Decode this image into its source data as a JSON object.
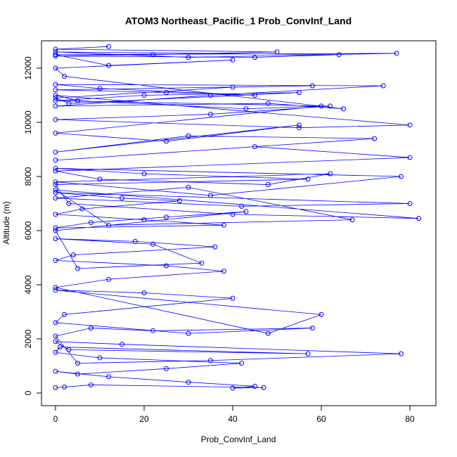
{
  "chart_data": {
    "type": "line",
    "title": "ATOM3 Northeast_Pacific_1 Prob_ConvInf_Land",
    "x_label": "Prob_ConvInf_Land",
    "y_label": "Altitude (m)",
    "color": "#0000ff",
    "xlim": [
      -3.17,
      85.87
    ],
    "ylim": [
      -468,
      13013
    ],
    "xticks": [
      0,
      20,
      40,
      60,
      80
    ],
    "yticks": [
      0,
      2000,
      4000,
      6000,
      8000,
      10000,
      12000
    ],
    "x": [
      0,
      2,
      8,
      47,
      40,
      45,
      30,
      12,
      0,
      5,
      25,
      42,
      10,
      0,
      1,
      57,
      3,
      0,
      15,
      78,
      35,
      5,
      0,
      8,
      22,
      58,
      30,
      0,
      2,
      40,
      20,
      0,
      60,
      48,
      0,
      12,
      38,
      25,
      0,
      4,
      36,
      18,
      0,
      22,
      33,
      5,
      0,
      43,
      25,
      8,
      0,
      38,
      20,
      0,
      6,
      28,
      15,
      0,
      80,
      42,
      0,
      30,
      67,
      12,
      0,
      82,
      40,
      3,
      0,
      57,
      20,
      0,
      78,
      35,
      0,
      62,
      48,
      10,
      0,
      80,
      45,
      0,
      72,
      30,
      0,
      55,
      25,
      0,
      60,
      43,
      5,
      0,
      80,
      55,
      0,
      35,
      62,
      0,
      20,
      55,
      3,
      0,
      40,
      58,
      0,
      25,
      45,
      10,
      0,
      74,
      35,
      0,
      48,
      65,
      2,
      0,
      40,
      12,
      0,
      77,
      30,
      0,
      64,
      45,
      0,
      22,
      50,
      0,
      12
    ],
    "values": [
      200,
      220,
      300,
      200,
      180,
      250,
      400,
      600,
      800,
      700,
      900,
      1100,
      1300,
      1500,
      1700,
      1450,
      1600,
      1900,
      1800,
      1450,
      1200,
      1100,
      2100,
      2400,
      2300,
      2400,
      2200,
      2600,
      2900,
      3500,
      3700,
      3800,
      2900,
      2200,
      3900,
      4200,
      4500,
      4700,
      4900,
      5100,
      5400,
      5600,
      5700,
      5500,
      4800,
      4600,
      6000,
      6700,
      6500,
      6300,
      6100,
      6200,
      6400,
      6600,
      6800,
      7100,
      7200,
      7400,
      7000,
      6900,
      7200,
      7600,
      6400,
      6200,
      7500,
      6450,
      6600,
      7000,
      7700,
      7900,
      8100,
      8300,
      8000,
      7300,
      7800,
      8100,
      7700,
      7900,
      8200,
      8700,
      9100,
      8600,
      9400,
      9500,
      8900,
      9900,
      9300,
      9600,
      10600,
      10500,
      10800,
      11000,
      9900,
      9800,
      10100,
      10300,
      10600,
      10800,
      11000,
      11100,
      10700,
      10900,
      11300,
      11350,
      11200,
      11100,
      11000,
      11250,
      11400,
      11350,
      11000,
      10600,
      10700,
      10500,
      11700,
      12000,
      12300,
      12100,
      12500,
      12550,
      12400,
      12600,
      12500,
      12400,
      12450,
      12500,
      12600,
      12700,
      12800
    ]
  }
}
